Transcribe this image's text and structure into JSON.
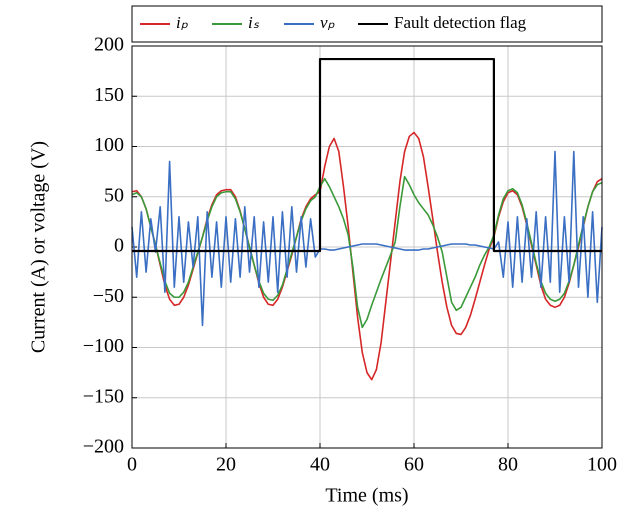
{
  "chart_data": {
    "type": "line",
    "xlabel": "Time (ms)",
    "ylabel": "Current (A) or voltage (V)",
    "x": [
      0,
      1,
      2,
      3,
      4,
      5,
      6,
      7,
      8,
      9,
      10,
      11,
      12,
      13,
      14,
      15,
      16,
      17,
      18,
      19,
      20,
      21,
      22,
      23,
      24,
      25,
      26,
      27,
      28,
      29,
      30,
      31,
      32,
      33,
      34,
      35,
      36,
      37,
      38,
      39,
      40,
      41,
      42,
      43,
      44,
      45,
      46,
      47,
      48,
      49,
      50,
      51,
      52,
      53,
      54,
      55,
      56,
      57,
      58,
      59,
      60,
      61,
      62,
      63,
      64,
      65,
      66,
      67,
      68,
      69,
      70,
      71,
      72,
      73,
      74,
      75,
      76,
      77,
      78,
      79,
      80,
      81,
      82,
      83,
      84,
      85,
      86,
      87,
      88,
      89,
      90,
      91,
      92,
      93,
      94,
      95,
      96,
      97,
      98,
      99,
      100
    ],
    "series": [
      {
        "name": "iₚ",
        "color": "#d62728",
        "values": [
          55,
          56,
          50,
          38,
          20,
          2,
          -18,
          -38,
          -52,
          -58,
          -57,
          -50,
          -38,
          -22,
          -6,
          10,
          28,
          42,
          52,
          56,
          57,
          57,
          50,
          36,
          18,
          0,
          -18,
          -36,
          -50,
          -57,
          -58,
          -52,
          -40,
          -24,
          -8,
          10,
          28,
          40,
          48,
          52,
          55,
          80,
          100,
          108,
          95,
          60,
          20,
          -25,
          -70,
          -105,
          -125,
          -132,
          -122,
          -95,
          -55,
          -15,
          25,
          65,
          95,
          110,
          114,
          108,
          90,
          60,
          28,
          -5,
          -35,
          -60,
          -78,
          -86,
          -87,
          -80,
          -68,
          -52,
          -35,
          -18,
          -2,
          10,
          30,
          45,
          54,
          56,
          52,
          40,
          22,
          2,
          -18,
          -38,
          -52,
          -58,
          -60,
          -58,
          -50,
          -36,
          -18,
          0,
          20,
          40,
          55,
          65,
          68
        ]
      },
      {
        "name": "iₛ",
        "color": "#3a9a3a",
        "values": [
          52,
          54,
          50,
          38,
          20,
          2,
          -16,
          -34,
          -46,
          -50,
          -50,
          -45,
          -35,
          -20,
          -5,
          10,
          26,
          40,
          50,
          54,
          55,
          55,
          48,
          35,
          18,
          0,
          -18,
          -34,
          -46,
          -52,
          -53,
          -48,
          -38,
          -22,
          -6,
          10,
          26,
          38,
          46,
          50,
          60,
          68,
          60,
          50,
          40,
          28,
          12,
          -20,
          -60,
          -80,
          -72,
          -58,
          -45,
          -32,
          -20,
          -8,
          5,
          40,
          70,
          62,
          52,
          44,
          38,
          32,
          22,
          10,
          -5,
          -30,
          -55,
          -63,
          -60,
          -50,
          -40,
          -30,
          -18,
          -8,
          0,
          12,
          32,
          48,
          56,
          58,
          54,
          42,
          24,
          4,
          -16,
          -34,
          -46,
          -52,
          -54,
          -52,
          -46,
          -34,
          -18,
          2,
          22,
          40,
          55,
          62,
          64
        ]
      },
      {
        "name": "vₚ",
        "color": "#3a6fc4",
        "values": [
          20,
          -30,
          35,
          -25,
          28,
          -5,
          40,
          -45,
          85,
          -40,
          30,
          -35,
          25,
          -20,
          30,
          -78,
          35,
          -30,
          25,
          -40,
          30,
          -35,
          28,
          -30,
          40,
          -25,
          30,
          -40,
          25,
          -35,
          30,
          -45,
          35,
          -30,
          40,
          -25,
          30,
          -20,
          28,
          -10,
          -2,
          -2,
          -3,
          -3,
          -2,
          -1,
          0,
          1,
          2,
          3,
          3,
          3,
          3,
          2,
          1,
          0,
          -1,
          -2,
          -3,
          -3,
          -3,
          -3,
          -2,
          -2,
          -1,
          0,
          1,
          2,
          3,
          3,
          3,
          3,
          2,
          2,
          1,
          0,
          -1,
          -2,
          5,
          -30,
          25,
          -40,
          30,
          -35,
          28,
          -30,
          35,
          -40,
          30,
          -35,
          95,
          -45,
          30,
          -35,
          95,
          -40,
          30,
          -50,
          35,
          -55,
          20
        ]
      },
      {
        "name": "Fault detection flag",
        "color": "#000000",
        "x": [
          0,
          40,
          40,
          77,
          77,
          100
        ],
        "values": [
          -4,
          -4,
          187,
          187,
          -4,
          -4
        ]
      }
    ],
    "xlim": [
      0,
      100
    ],
    "xticks": [
      0,
      20,
      40,
      60,
      80,
      100
    ],
    "ylim": [
      -200,
      200
    ],
    "yticks": [
      {
        "value": -200,
        "label": "−200"
      },
      {
        "value": -150,
        "label": "−150"
      },
      {
        "value": -100,
        "label": "−100"
      },
      {
        "value": -50,
        "label": "−50"
      },
      0,
      50,
      100,
      150,
      200
    ],
    "grid": true,
    "legend": "top"
  }
}
